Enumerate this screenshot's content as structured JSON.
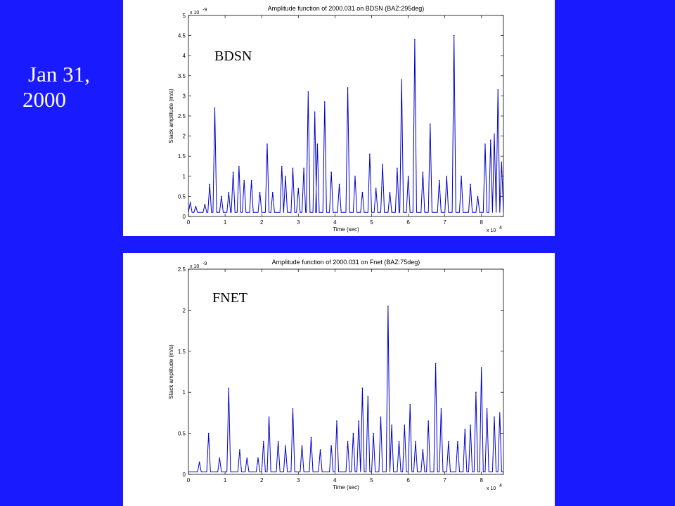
{
  "slide": {
    "title_line1": "Jan 31,",
    "title_line2": "2000"
  },
  "colors": {
    "background": "#1a1aff",
    "series": "#0000cc",
    "panel": "#ffffff"
  },
  "chart_data": [
    {
      "type": "line",
      "title": "Amplitude function of 2000.031 on BDSN (BAZ:295deg)",
      "station_label": "BDSN",
      "xlabel": "Time (sec)",
      "ylabel": "Stack amplitude (m/s)",
      "x_multiplier": "x 10",
      "x_exponent": "4",
      "y_multiplier": "x 10",
      "y_exponent": "-9",
      "xlim": [
        0,
        8.6
      ],
      "ylim": [
        0,
        5
      ],
      "xticks": [
        0,
        1,
        2,
        3,
        4,
        5,
        6,
        7,
        8
      ],
      "yticks": [
        0,
        0.5,
        1,
        1.5,
        2,
        2.5,
        3,
        3.5,
        4,
        4.5,
        5
      ],
      "xtick_labels": [
        "0",
        "1",
        "2",
        "3",
        "4",
        "5",
        "6",
        "7",
        "8"
      ],
      "ytick_labels": [
        "0",
        "0.5",
        "1",
        "1.5",
        "2",
        "2.5",
        "3",
        "3.5",
        "4",
        "4.5",
        "5"
      ],
      "baseline": 0.1,
      "peaks": [
        [
          0.05,
          0.35
        ],
        [
          0.2,
          0.25
        ],
        [
          0.45,
          0.3
        ],
        [
          0.58,
          0.8
        ],
        [
          0.72,
          2.7
        ],
        [
          0.9,
          0.5
        ],
        [
          1.1,
          0.6
        ],
        [
          1.22,
          1.1
        ],
        [
          1.38,
          1.25
        ],
        [
          1.52,
          0.9
        ],
        [
          1.72,
          0.9
        ],
        [
          1.95,
          0.6
        ],
        [
          2.15,
          1.8
        ],
        [
          2.3,
          0.6
        ],
        [
          2.55,
          1.25
        ],
        [
          2.65,
          1.0
        ],
        [
          2.85,
          1.2
        ],
        [
          3.0,
          0.7
        ],
        [
          3.15,
          1.2
        ],
        [
          3.27,
          3.1
        ],
        [
          3.45,
          2.6
        ],
        [
          3.52,
          1.8
        ],
        [
          3.72,
          2.85
        ],
        [
          3.9,
          1.1
        ],
        [
          4.12,
          0.8
        ],
        [
          4.35,
          3.2
        ],
        [
          4.55,
          1.0
        ],
        [
          4.75,
          0.6
        ],
        [
          4.95,
          1.55
        ],
        [
          5.12,
          0.7
        ],
        [
          5.3,
          1.3
        ],
        [
          5.5,
          0.6
        ],
        [
          5.7,
          1.2
        ],
        [
          5.82,
          3.4
        ],
        [
          6.0,
          1.0
        ],
        [
          6.18,
          4.4
        ],
        [
          6.4,
          1.1
        ],
        [
          6.6,
          2.3
        ],
        [
          6.85,
          0.9
        ],
        [
          7.05,
          1.0
        ],
        [
          7.25,
          4.5
        ],
        [
          7.45,
          1.0
        ],
        [
          7.7,
          0.8
        ],
        [
          7.9,
          0.5
        ],
        [
          8.1,
          1.8
        ],
        [
          8.25,
          1.9
        ],
        [
          8.35,
          2.05
        ],
        [
          8.45,
          3.15
        ],
        [
          8.55,
          1.35
        ]
      ]
    },
    {
      "type": "line",
      "title": "Amplitude function of 2000.031 on Fnet (BAZ:75deg)",
      "station_label": "FNET",
      "xlabel": "Time (sec)",
      "ylabel": "Stack amplitude (m/s)",
      "x_multiplier": "x 10",
      "x_exponent": "4",
      "y_multiplier": "x 10",
      "y_exponent": "-9",
      "xlim": [
        0,
        8.6
      ],
      "ylim": [
        0,
        2.5
      ],
      "xticks": [
        0,
        1,
        2,
        3,
        4,
        5,
        6,
        7,
        8
      ],
      "yticks": [
        0,
        0.5,
        1,
        1.5,
        2,
        2.5
      ],
      "xtick_labels": [
        "0",
        "1",
        "2",
        "3",
        "4",
        "5",
        "6",
        "7",
        "8"
      ],
      "ytick_labels": [
        "0",
        "0.5",
        "1",
        "1.5",
        "2",
        "2.5"
      ],
      "baseline": 0.03,
      "peaks": [
        [
          0.3,
          0.15
        ],
        [
          0.55,
          0.5
        ],
        [
          0.85,
          0.2
        ],
        [
          1.1,
          1.05
        ],
        [
          1.4,
          0.3
        ],
        [
          1.6,
          0.2
        ],
        [
          1.9,
          0.2
        ],
        [
          2.05,
          0.4
        ],
        [
          2.2,
          0.7
        ],
        [
          2.45,
          0.4
        ],
        [
          2.65,
          0.35
        ],
        [
          2.85,
          0.8
        ],
        [
          3.1,
          0.35
        ],
        [
          3.35,
          0.45
        ],
        [
          3.6,
          0.3
        ],
        [
          3.9,
          0.35
        ],
        [
          4.05,
          0.65
        ],
        [
          4.35,
          0.4
        ],
        [
          4.5,
          0.5
        ],
        [
          4.65,
          0.65
        ],
        [
          4.75,
          1.05
        ],
        [
          4.9,
          0.95
        ],
        [
          5.05,
          0.5
        ],
        [
          5.25,
          0.7
        ],
        [
          5.45,
          2.05
        ],
        [
          5.55,
          0.6
        ],
        [
          5.75,
          0.4
        ],
        [
          5.9,
          0.6
        ],
        [
          6.05,
          0.85
        ],
        [
          6.2,
          0.4
        ],
        [
          6.4,
          0.3
        ],
        [
          6.55,
          0.65
        ],
        [
          6.75,
          1.35
        ],
        [
          6.9,
          0.8
        ],
        [
          7.1,
          0.4
        ],
        [
          7.35,
          0.4
        ],
        [
          7.55,
          0.55
        ],
        [
          7.7,
          0.6
        ],
        [
          7.85,
          1.0
        ],
        [
          8.0,
          1.3
        ],
        [
          8.15,
          0.8
        ],
        [
          8.35,
          0.7
        ],
        [
          8.5,
          0.75
        ]
      ]
    }
  ]
}
